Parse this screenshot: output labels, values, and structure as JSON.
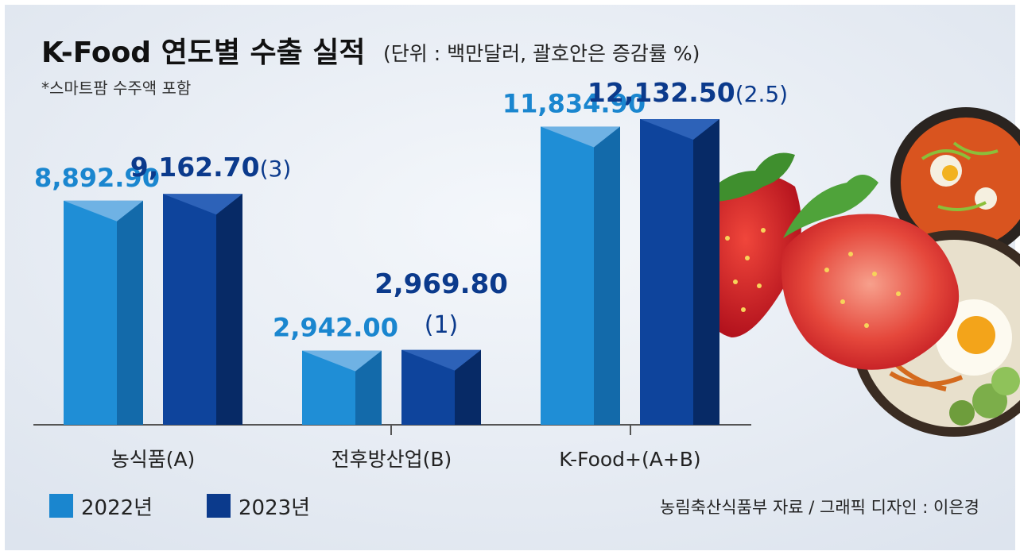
{
  "title": "K-Food 연도별 수출 실적",
  "unit_note": "(단위 : 백만달러, 괄호안은 증감률 %)",
  "footnote": "*스마트팜 수주액 포함",
  "source": "농림축산식품부 자료 / 그래픽 디자인 : 이은경",
  "colors": {
    "background": "#e9eef5",
    "y2022": "#1a86cf",
    "y2023": "#0b3a8c",
    "label2022": "#1a86cf",
    "label2023": "#0b3a8c",
    "text": "#222222"
  },
  "chart_data": {
    "type": "bar",
    "categories": [
      "농식품(A)",
      "전후방산업(B)",
      "K-Food+(A+B)"
    ],
    "series": [
      {
        "name": "2022년",
        "values": [
          8892.9,
          2942.0,
          11834.9
        ],
        "labels": [
          "8,892.90",
          "2,942.00",
          "11,834.90"
        ]
      },
      {
        "name": "2023년",
        "values": [
          9162.7,
          2969.8,
          12132.5
        ],
        "labels": [
          "9,162.70",
          "2,969.80",
          "12,132.50"
        ],
        "changes": [
          "(3)",
          "(1)",
          "(2.5)"
        ]
      }
    ],
    "ylim": [
      0,
      12500
    ],
    "grid": false,
    "legend": "bottom-left"
  }
}
